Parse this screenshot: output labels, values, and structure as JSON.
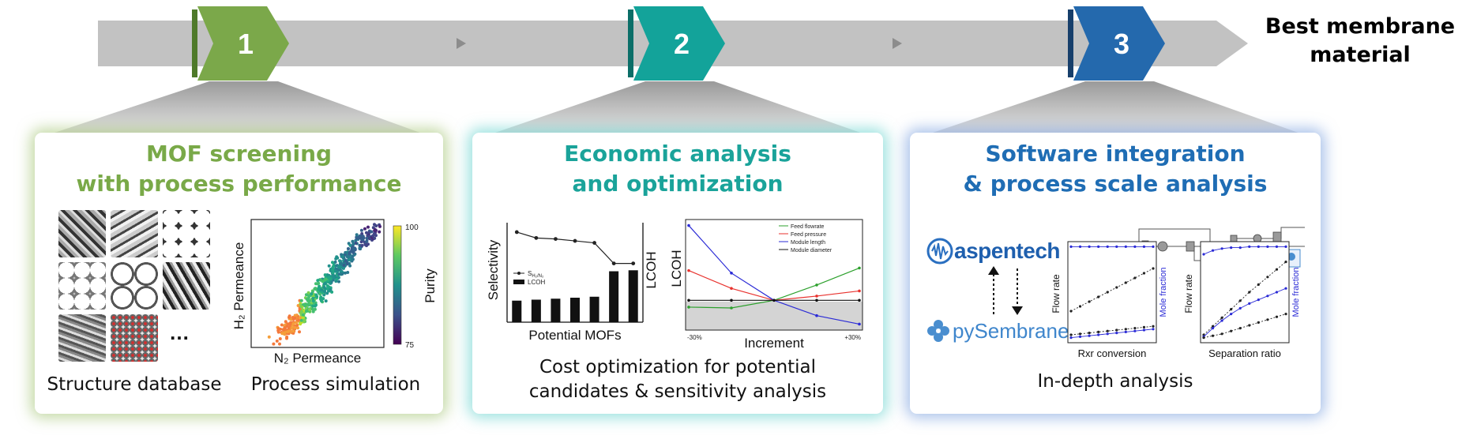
{
  "steps": [
    {
      "number": "1",
      "color": "#7ba84a"
    },
    {
      "number": "2",
      "color": "#13a39a"
    },
    {
      "number": "3",
      "color": "#2469ad"
    }
  ],
  "headline": {
    "line1": "Best membrane",
    "line2": "material"
  },
  "panels": [
    {
      "title_line1": "MOF screening",
      "title_line2": "with process performance",
      "caption_left": "Structure database",
      "caption_right": "Process simulation",
      "ellipsis": "…",
      "scatter": {
        "xlabel": "N₂ Permeance",
        "ylabel": "H₂ Permeance",
        "colorbar_label": "Purity",
        "colorbar_max": "100",
        "colorbar_min": "75"
      }
    },
    {
      "title_line1": "Economic analysis",
      "title_line2": "and optimization",
      "caption_line1": "Cost optimization  for potential",
      "caption_line2": "candidates & sensitivity analysis"
    },
    {
      "title_line1": "Software integration",
      "title_line2": "& process scale analysis",
      "caption": "In-depth analysis",
      "aspen_logo": "aspentech",
      "pysembrane_logo": "pySembrane"
    }
  ],
  "chart_data": [
    {
      "type": "bar",
      "xlabel": "Potential MOFs",
      "ylabel": "Selectivity",
      "ylabel_right": "LCOH",
      "series": [
        {
          "name": "S_H2/N2",
          "type": "line",
          "values": [
            92,
            86,
            85,
            83,
            81,
            60,
            60
          ]
        },
        {
          "name": "LCOH",
          "type": "bar",
          "values": [
            22,
            23,
            24,
            25,
            26,
            52,
            53
          ]
        }
      ],
      "ylim": [
        0,
        100
      ]
    },
    {
      "type": "line",
      "xlabel": "Increment",
      "ylabel": "LCOH",
      "x_tick_labels": [
        "-30%",
        "+30%"
      ],
      "x": [
        -30,
        -15,
        0,
        15,
        30
      ],
      "series": [
        {
          "name": "Feed flowrate",
          "color": "#2ca02c",
          "values": [
            -0.08,
            -0.09,
            0,
            0.18,
            0.38
          ]
        },
        {
          "name": "Feed pressure",
          "color": "#e8322e",
          "values": [
            0.35,
            0.14,
            0,
            0.05,
            0.11
          ]
        },
        {
          "name": "Module length",
          "color": "#2b2bd6",
          "values": [
            0.88,
            0.32,
            0,
            -0.18,
            -0.28
          ]
        },
        {
          "name": "Module diameter",
          "color": "#111111",
          "values": [
            0,
            0,
            0,
            0,
            0
          ]
        }
      ],
      "ylim": [
        -0.35,
        0.95
      ]
    },
    {
      "type": "line",
      "xlabel": "Rxr conversion",
      "ylabel": "Flow rate",
      "ylabel_right": "Mole fraction"
    },
    {
      "type": "line",
      "xlabel": "Separation ratio",
      "ylabel": "Flow rate",
      "ylabel_right": "Mole fraction"
    }
  ]
}
